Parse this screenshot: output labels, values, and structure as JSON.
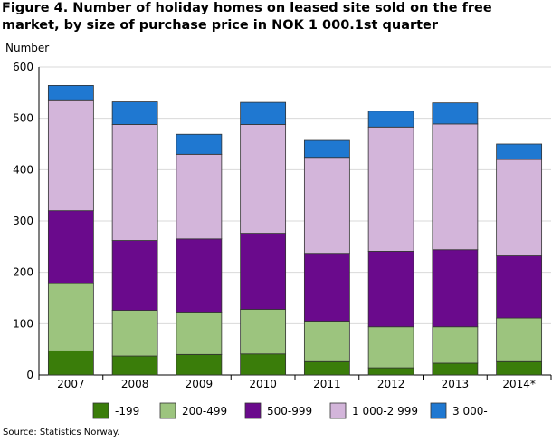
{
  "title": "Figure 4. Number of holiday homes on leased site sold on the free market, by size of purchase price in  NOK 1 000.1st quarter",
  "source": "Source: Statistics Norway.",
  "chart_data": {
    "type": "bar",
    "stacked": true,
    "ylabel": "Number",
    "xlabel": "",
    "ylim": [
      0,
      600
    ],
    "yticks": [
      0,
      100,
      200,
      300,
      400,
      500,
      600
    ],
    "grid": true,
    "legend_position": "bottom",
    "categories": [
      "2007",
      "2008",
      "2009",
      "2010",
      "2011",
      "2012",
      "2013",
      "2014*"
    ],
    "series": [
      {
        "name": "-199",
        "color": "#3a7d0a",
        "values": [
          47,
          37,
          40,
          41,
          26,
          14,
          23,
          26
        ]
      },
      {
        "name": "200-499",
        "color": "#9cc47e",
        "values": [
          131,
          89,
          81,
          87,
          79,
          80,
          71,
          85
        ]
      },
      {
        "name": "500-999",
        "color": "#6a0a8c",
        "values": [
          142,
          136,
          144,
          148,
          132,
          147,
          150,
          121
        ]
      },
      {
        "name": "1 000-2 999",
        "color": "#d3b5da",
        "values": [
          216,
          226,
          165,
          212,
          187,
          242,
          245,
          188
        ]
      },
      {
        "name": "3 000-",
        "color": "#1f78d1",
        "values": [
          28,
          44,
          39,
          43,
          33,
          31,
          41,
          30
        ]
      }
    ]
  }
}
